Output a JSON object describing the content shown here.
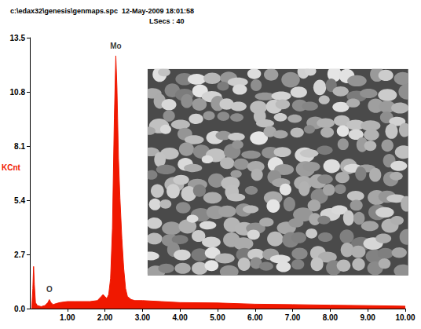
{
  "chart_data": {
    "type": "area",
    "title": "c:\\edax32\\genesis\\genmaps.spc  12-May-2009 18:01:58",
    "subtitle": "LSecs : 40",
    "y_label": "KCnt",
    "color": "#f01800",
    "x": [
      0.05,
      0.08,
      0.1,
      0.12,
      0.15,
      0.2,
      0.3,
      0.4,
      0.48,
      0.52,
      0.56,
      0.62,
      0.7,
      0.8,
      1.0,
      1.2,
      1.4,
      1.6,
      1.8,
      1.9,
      1.95,
      2.0,
      2.05,
      2.1,
      2.15,
      2.2,
      2.25,
      2.29,
      2.32,
      2.36,
      2.4,
      2.45,
      2.5,
      2.55,
      2.6,
      2.7,
      2.8,
      3.0,
      3.5,
      4.0,
      5.0,
      6.0,
      7.0,
      8.0,
      9.0,
      10.0
    ],
    "values": [
      0,
      1.0,
      2.1,
      1.2,
      0.3,
      0.15,
      0.1,
      0.15,
      0.3,
      0.45,
      0.3,
      0.2,
      0.25,
      0.3,
      0.35,
      0.35,
      0.35,
      0.35,
      0.4,
      0.6,
      0.7,
      0.6,
      0.5,
      0.7,
      1.5,
      4.0,
      9.5,
      12.6,
      11.0,
      7.5,
      5.5,
      3.5,
      2.0,
      1.0,
      0.6,
      0.45,
      0.4,
      0.4,
      0.35,
      0.3,
      0.28,
      0.22,
      0.2,
      0.17,
      0.15,
      0.12
    ],
    "xlim": [
      0,
      10
    ],
    "xticks": [
      {
        "value": 1,
        "label": "1.00"
      },
      {
        "value": 2,
        "label": "2.00"
      },
      {
        "value": 3,
        "label": "3.00"
      },
      {
        "value": 4,
        "label": "4.00"
      },
      {
        "value": 5,
        "label": "5.00"
      },
      {
        "value": 6,
        "label": "6.00"
      },
      {
        "value": 7,
        "label": "7.00"
      },
      {
        "value": 8,
        "label": "8.00"
      },
      {
        "value": 9,
        "label": "9.00"
      },
      {
        "value": 10,
        "label": "10.00"
      }
    ],
    "ylim": [
      0,
      13.5
    ],
    "yticks": [
      {
        "value": 0,
        "label": "0.0"
      },
      2.7,
      5.4,
      8.1,
      10.8,
      13.5
    ],
    "grid": false,
    "annotations": [
      {
        "text": "Mo",
        "x": 2.29,
        "y": 12.6
      },
      {
        "text": "O",
        "x": 0.52,
        "y": 0.45
      }
    ]
  }
}
